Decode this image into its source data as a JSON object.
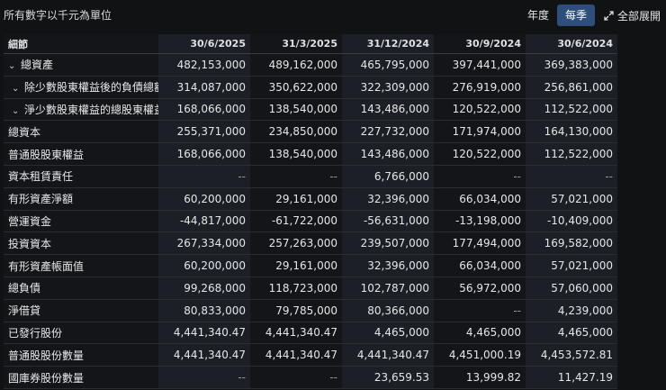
{
  "unit_note": "所有數字以千元為單位",
  "controls": {
    "annual_label": "年度",
    "quarterly_label": "每季",
    "expand_label": "全部展開"
  },
  "table": {
    "header_label": "細節",
    "columns": [
      "30/6/2025",
      "31/3/2025",
      "31/12/2024",
      "30/9/2024",
      "30/6/2024"
    ],
    "rows": [
      {
        "label": "總資產",
        "values": [
          "482,153,000",
          "489,162,000",
          "465,795,000",
          "397,441,000",
          "369,383,000"
        ]
      },
      {
        "label": "除少數股東權益後的負債總額",
        "values": [
          "314,087,000",
          "350,622,000",
          "322,309,000",
          "276,919,000",
          "256,861,000"
        ]
      },
      {
        "label": "淨少數股東權益的總股東權益",
        "values": [
          "168,066,000",
          "138,540,000",
          "143,486,000",
          "120,522,000",
          "112,522,000"
        ]
      },
      {
        "label": "總資本",
        "values": [
          "255,371,000",
          "234,850,000",
          "227,732,000",
          "171,974,000",
          "164,130,000"
        ]
      },
      {
        "label": "普通股股東權益",
        "values": [
          "168,066,000",
          "138,540,000",
          "143,486,000",
          "120,522,000",
          "112,522,000"
        ]
      },
      {
        "label": "資本租賃責任",
        "values": [
          "--",
          "--",
          "6,766,000",
          "--",
          "--"
        ]
      },
      {
        "label": "有形資產淨額",
        "values": [
          "60,200,000",
          "29,161,000",
          "32,396,000",
          "66,034,000",
          "57,021,000"
        ]
      },
      {
        "label": "營運資金",
        "values": [
          "-44,817,000",
          "-61,722,000",
          "-56,631,000",
          "-13,198,000",
          "-10,409,000"
        ]
      },
      {
        "label": "投資資本",
        "values": [
          "267,334,000",
          "257,263,000",
          "239,507,000",
          "177,494,000",
          "169,582,000"
        ]
      },
      {
        "label": "有形資產帳面值",
        "values": [
          "60,200,000",
          "29,161,000",
          "32,396,000",
          "66,034,000",
          "57,021,000"
        ]
      },
      {
        "label": "總負債",
        "values": [
          "99,268,000",
          "118,723,000",
          "102,787,000",
          "56,972,000",
          "57,060,000"
        ]
      },
      {
        "label": "淨借貸",
        "values": [
          "80,833,000",
          "79,785,000",
          "80,366,000",
          "--",
          "4,239,000"
        ]
      },
      {
        "label": "已發行股份",
        "values": [
          "4,441,340.47",
          "4,441,340.47",
          "4,465,000",
          "4,465,000",
          "4,465,000"
        ]
      },
      {
        "label": "普通股股份數量",
        "values": [
          "4,441,340.47",
          "4,441,340.47",
          "4,441,340.47",
          "4,451,000.19",
          "4,453,572.81"
        ]
      },
      {
        "label": "國庫券股份數量",
        "values": [
          "--",
          "--",
          "23,659.53",
          "13,999.82",
          "11,427.19"
        ]
      }
    ]
  }
}
